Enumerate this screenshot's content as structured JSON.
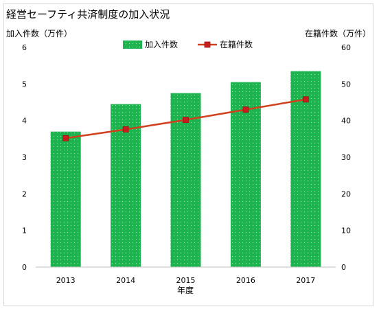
{
  "chart_data": {
    "type": "bar",
    "title": "経営セーフティ共済制度の加入状況",
    "xlabel": "年度",
    "categories": [
      "2013",
      "2014",
      "2015",
      "2016",
      "2017"
    ],
    "series": [
      {
        "name": "加入件数",
        "type": "bar",
        "axis": "left",
        "values": [
          3.7,
          4.45,
          4.75,
          5.05,
          5.35
        ],
        "color": "#1db34f"
      },
      {
        "name": "在籍件数",
        "type": "line",
        "axis": "right",
        "values": [
          35.2,
          37.6,
          40.2,
          43.0,
          45.8
        ],
        "color": "#d1401c",
        "marker_color": "#c81e1e"
      }
    ],
    "y_left": {
      "label": "加入件数（万件）",
      "range": [
        0,
        6
      ],
      "ticks": [
        "0",
        "1",
        "2",
        "3",
        "4",
        "5",
        "6"
      ]
    },
    "y_right": {
      "label": "在籍件数（万件）",
      "range": [
        0,
        60
      ],
      "ticks": [
        "0",
        "10",
        "20",
        "30",
        "40",
        "50",
        "60"
      ]
    },
    "grid": false,
    "legend_position": "top"
  }
}
